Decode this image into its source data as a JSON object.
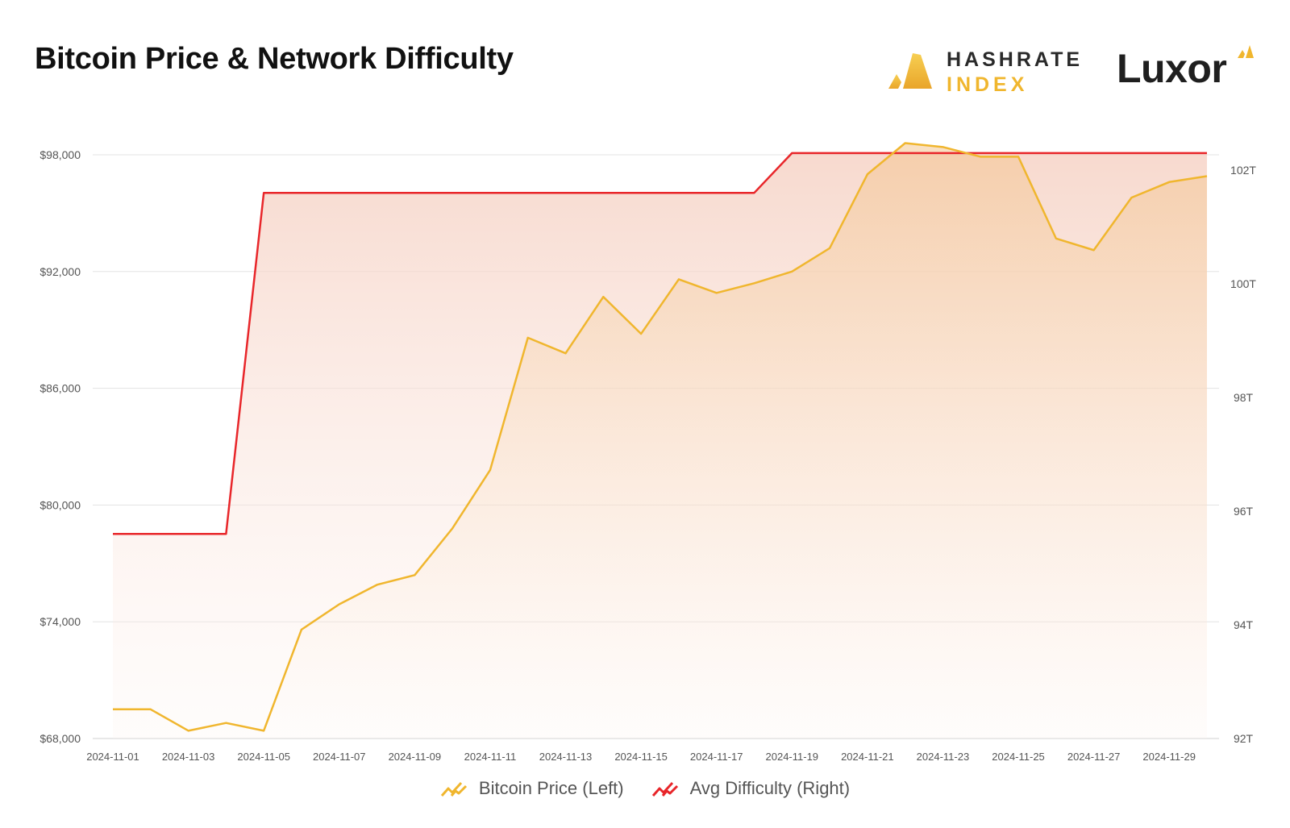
{
  "title": "Bitcoin Price & Network Difficulty",
  "logos": {
    "hashrate_line1": "HASHRATE",
    "hashrate_line2": "INDEX",
    "luxor": "Luxor"
  },
  "colors": {
    "price": "#f0b62e",
    "difficulty": "#e8262a",
    "grid": "#e3e3e3"
  },
  "chart_data": {
    "type": "line",
    "x": [
      "2024-11-01",
      "2024-11-02",
      "2024-11-03",
      "2024-11-04",
      "2024-11-05",
      "2024-11-06",
      "2024-11-07",
      "2024-11-08",
      "2024-11-09",
      "2024-11-10",
      "2024-11-11",
      "2024-11-12",
      "2024-11-13",
      "2024-11-14",
      "2024-11-15",
      "2024-11-16",
      "2024-11-17",
      "2024-11-18",
      "2024-11-19",
      "2024-11-20",
      "2024-11-21",
      "2024-11-22",
      "2024-11-23",
      "2024-11-24",
      "2024-11-25",
      "2024-11-26",
      "2024-11-27",
      "2024-11-28",
      "2024-11-29",
      "2024-11-30"
    ],
    "x_tick_labels": [
      "2024-11-01",
      "2024-11-03",
      "2024-11-05",
      "2024-11-07",
      "2024-11-09",
      "2024-11-11",
      "2024-11-13",
      "2024-11-15",
      "2024-11-17",
      "2024-11-19",
      "2024-11-21",
      "2024-11-23",
      "2024-11-25",
      "2024-11-27",
      "2024-11-29"
    ],
    "series": [
      {
        "name": "Bitcoin Price (Left)",
        "axis": "left",
        "values": [
          69500,
          69500,
          68400,
          68800,
          68400,
          73600,
          74900,
          75900,
          76400,
          78800,
          81800,
          88600,
          87800,
          90700,
          88800,
          91600,
          90900,
          91400,
          92000,
          93200,
          97000,
          98600,
          98400,
          97900,
          97900,
          93700,
          93100,
          95800,
          96600,
          96900
        ]
      },
      {
        "name": "Avg Difficulty (Right)",
        "axis": "right",
        "values": [
          95.6,
          95.6,
          95.6,
          95.6,
          101.6,
          101.6,
          101.6,
          101.6,
          101.6,
          101.6,
          101.6,
          101.6,
          101.6,
          101.6,
          101.6,
          101.6,
          101.6,
          101.6,
          102.3,
          102.3,
          102.3,
          102.3,
          102.3,
          102.3,
          102.3,
          102.3,
          102.3,
          102.3,
          102.3,
          102.3
        ]
      }
    ],
    "y_left": {
      "min": 68000,
      "max": 98000,
      "ticks": [
        68000,
        74000,
        80000,
        86000,
        92000,
        98000
      ],
      "tick_labels": [
        "$68,000",
        "$74,000",
        "$80,000",
        "$86,000",
        "$92,000",
        "$98,000"
      ]
    },
    "y_right": {
      "min": 92,
      "max": 102,
      "ticks": [
        92,
        94,
        96,
        98,
        100,
        102
      ],
      "tick_labels": [
        "92T",
        "94T",
        "96T",
        "98T",
        "100T",
        "102T"
      ]
    },
    "grid": true,
    "legend_position": "bottom"
  }
}
